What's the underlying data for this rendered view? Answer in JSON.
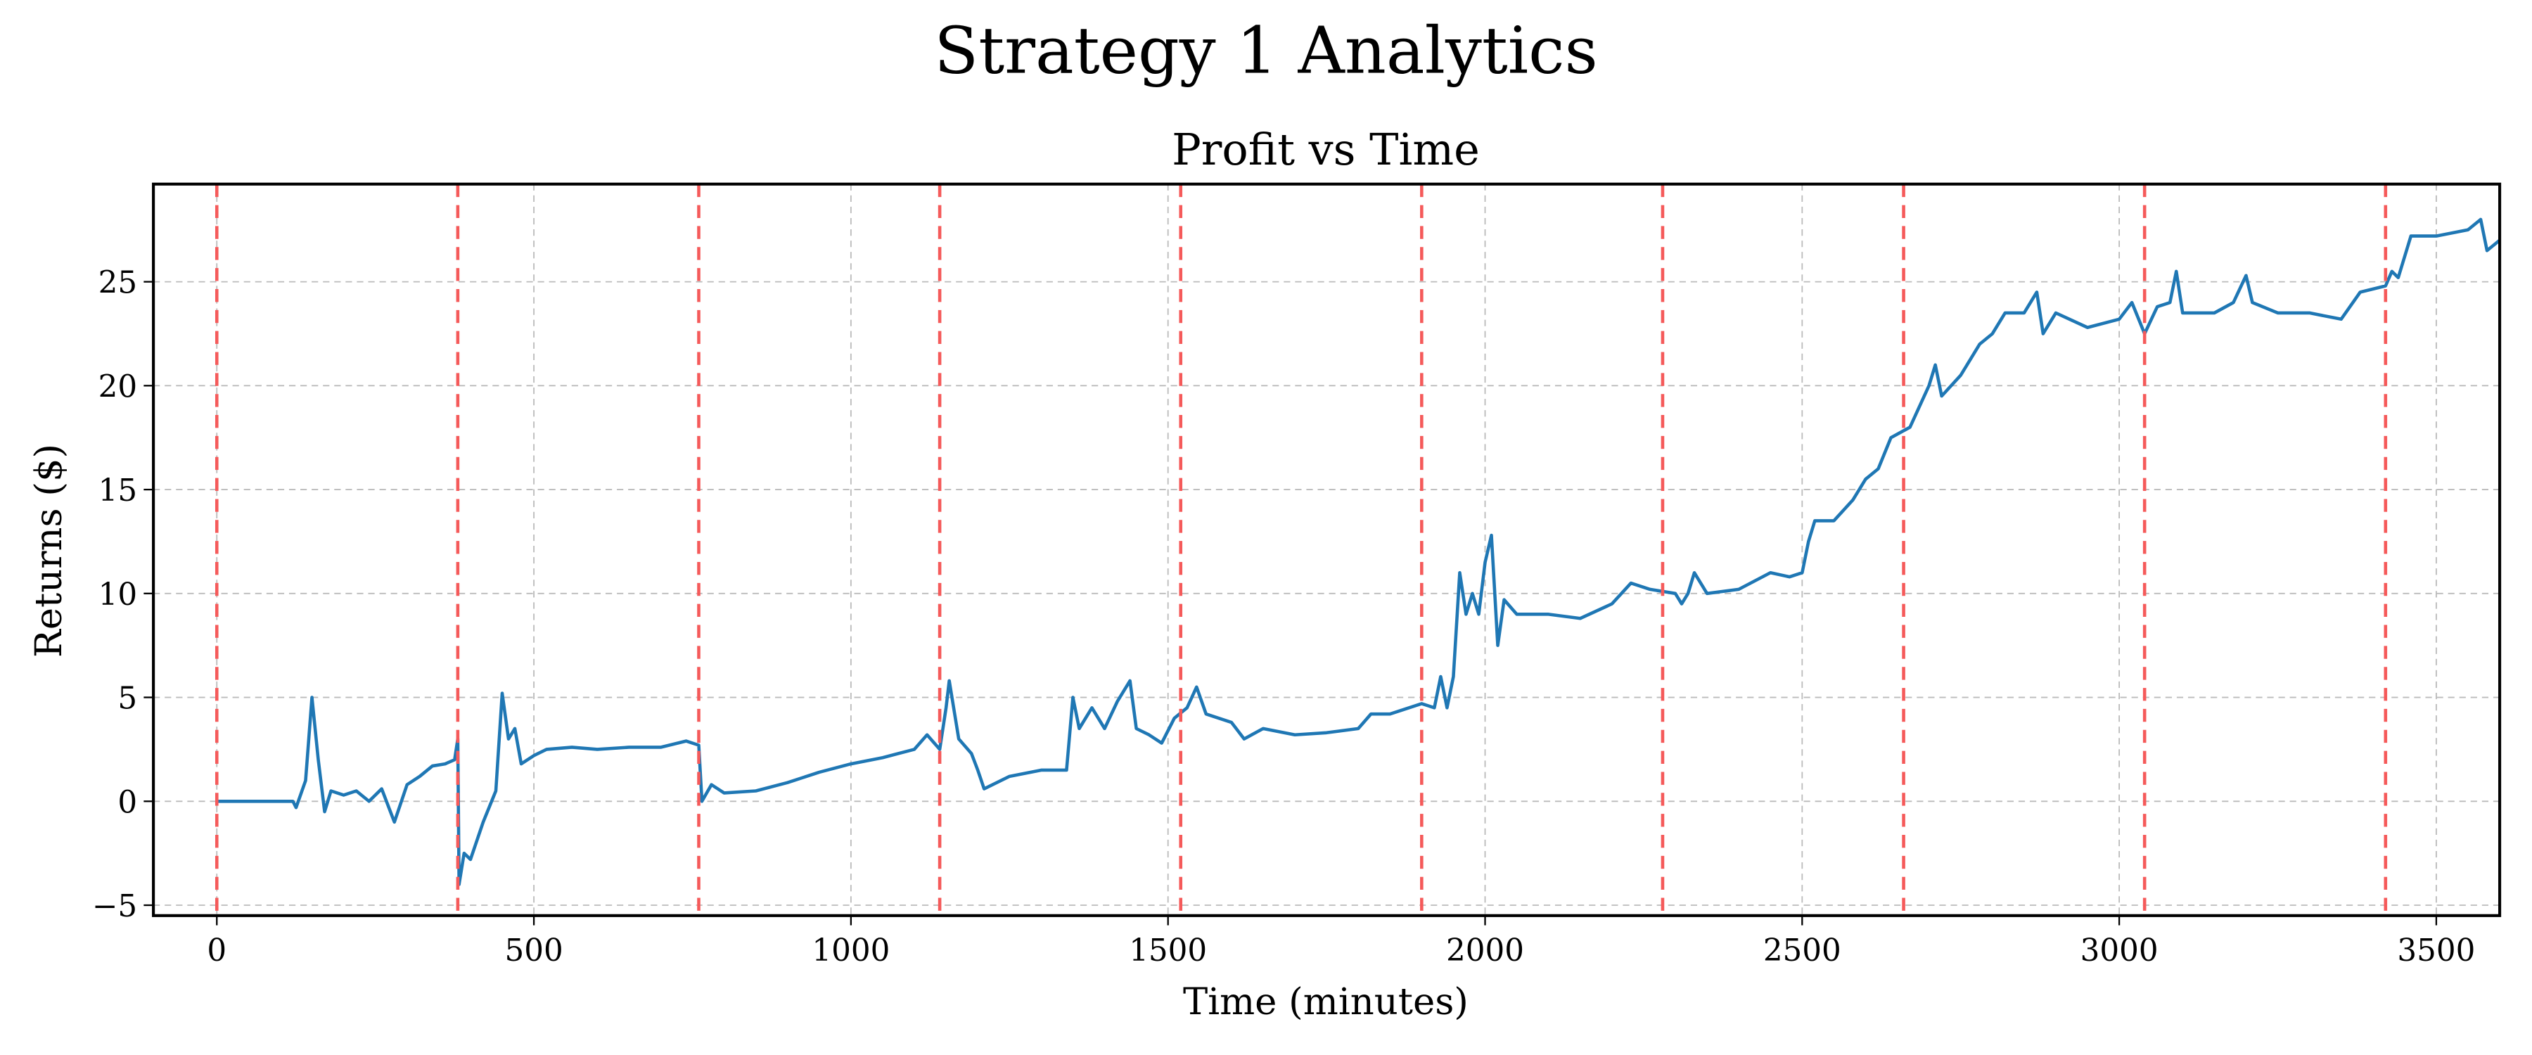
{
  "chart_data": {
    "type": "line",
    "title": "Strategy 1 Analytics",
    "subtitle": "Profit vs Time",
    "xlabel": "Time (minutes)",
    "ylabel": "Returns ($)",
    "xlim": [
      -100,
      3600
    ],
    "ylim": [
      -5.5,
      29.7
    ],
    "xticks": [
      0,
      500,
      1000,
      1500,
      2000,
      2500,
      3000,
      3500
    ],
    "yticks": [
      {
        "value": -5,
        "label": "−5"
      },
      0,
      5,
      10,
      15,
      20,
      25
    ],
    "grid": true,
    "vlines": [
      0,
      380,
      760,
      1140,
      1520,
      1900,
      2280,
      2660,
      3040,
      3420
    ],
    "vline_color": "#f55a5a",
    "series": [
      {
        "color": "#1f77b4",
        "x": [
          0,
          120,
          125,
          140,
          150,
          160,
          170,
          180,
          200,
          220,
          240,
          260,
          280,
          300,
          320,
          340,
          360,
          375,
          380,
          382,
          390,
          400,
          420,
          440,
          450,
          460,
          470,
          480,
          500,
          520,
          560,
          600,
          650,
          700,
          740,
          760,
          765,
          780,
          800,
          850,
          900,
          950,
          1000,
          1050,
          1100,
          1120,
          1140,
          1150,
          1155,
          1170,
          1190,
          1200,
          1210,
          1250,
          1300,
          1340,
          1350,
          1360,
          1380,
          1400,
          1420,
          1440,
          1450,
          1470,
          1490,
          1510,
          1530,
          1545,
          1560,
          1600,
          1620,
          1650,
          1700,
          1750,
          1800,
          1820,
          1850,
          1900,
          1920,
          1930,
          1940,
          1950,
          1960,
          1970,
          1980,
          1990,
          2000,
          2010,
          2020,
          2030,
          2050,
          2100,
          2150,
          2200,
          2230,
          2260,
          2300,
          2310,
          2320,
          2330,
          2350,
          2400,
          2450,
          2480,
          2500,
          2510,
          2520,
          2550,
          2580,
          2600,
          2620,
          2640,
          2670,
          2700,
          2710,
          2720,
          2750,
          2780,
          2800,
          2820,
          2850,
          2870,
          2880,
          2900,
          2950,
          3000,
          3020,
          3040,
          3060,
          3080,
          3090,
          3100,
          3150,
          3180,
          3200,
          3210,
          3250,
          3300,
          3350,
          3380,
          3420,
          3430,
          3440,
          3460,
          3500,
          3550,
          3570,
          3580,
          3600
        ],
        "values": [
          0,
          0,
          -0.3,
          1,
          5,
          2,
          -0.5,
          0.5,
          0.3,
          0.5,
          0,
          0.6,
          -1,
          0.8,
          1.2,
          1.7,
          1.8,
          2,
          3,
          -4,
          -2.5,
          -2.8,
          -1,
          0.5,
          5.2,
          3,
          3.5,
          1.8,
          2.2,
          2.5,
          2.6,
          2.5,
          2.6,
          2.6,
          2.9,
          2.7,
          0,
          0.8,
          0.4,
          0.5,
          0.9,
          1.4,
          1.8,
          2.1,
          2.5,
          3.2,
          2.5,
          4.5,
          5.8,
          3,
          2.3,
          1.5,
          0.6,
          1.2,
          1.5,
          1.5,
          5,
          3.5,
          4.5,
          3.5,
          4.8,
          5.8,
          3.5,
          3.2,
          2.8,
          4,
          4.5,
          5.5,
          4.2,
          3.8,
          3,
          3.5,
          3.2,
          3.3,
          3.5,
          4.2,
          4.2,
          4.7,
          4.5,
          6,
          4.5,
          6,
          11,
          9,
          10,
          9,
          11.5,
          12.8,
          7.5,
          9.7,
          9,
          9,
          8.8,
          9.5,
          10.5,
          10.2,
          10,
          9.5,
          10,
          11,
          10,
          10.2,
          11,
          10.8,
          11,
          12.5,
          13.5,
          13.5,
          14.5,
          15.5,
          16,
          17.5,
          18,
          20,
          21,
          19.5,
          20.5,
          22,
          22.5,
          23.5,
          23.5,
          24.5,
          22.5,
          23.5,
          22.8,
          23.2,
          24,
          22.5,
          23.8,
          24,
          25.5,
          23.5,
          23.5,
          24,
          25.3,
          24,
          23.5,
          23.5,
          23.2,
          24.5,
          24.8,
          25.5,
          25.2,
          27.2,
          27.2,
          27.5,
          28,
          26.5,
          27
        ]
      }
    ]
  }
}
